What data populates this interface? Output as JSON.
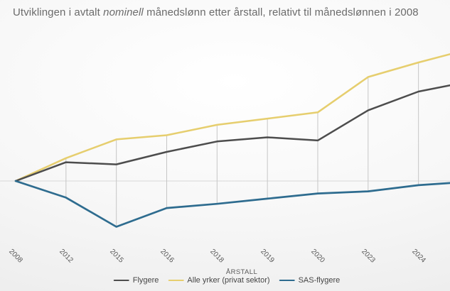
{
  "title": {
    "prefix": "Utviklingen i avtalt ",
    "italic": "nominell",
    "suffix": " månedslønn etter årstall, relativt til månedslønnen i 2008"
  },
  "x_axis": {
    "title": "ÅRSTALL",
    "tick_labels": [
      "2008",
      "2012",
      "2015",
      "2016",
      "2018",
      "2019",
      "2020",
      "2023",
      "2024"
    ]
  },
  "legend": [
    {
      "label": "Flygere",
      "color": "#4d4d4d"
    },
    {
      "label": "Alle yrker (privat sektor)",
      "color": "#e6ce6e"
    },
    {
      "label": "SAS-flygere",
      "color": "#2e6c8f"
    }
  ],
  "colors": {
    "title_text": "#6b6b6b",
    "tick_text": "#595959",
    "legend_text": "#454545",
    "baseline_gridline": "#d8d8d8",
    "high_low_line": "#c6c6c6"
  },
  "chart_data": {
    "type": "line",
    "title": "Utviklingen i avtalt nominell månedslønn etter årstall, relativt til månedslønnen i 2008",
    "xlabel": "ÅRSTALL",
    "ylabel": "",
    "y_axis_visible": false,
    "y_unit": "index, 2008 = 100 (estimated; no y-axis labels visible)",
    "baseline_value": 100,
    "grid": "single horizontal baseline plus vertical high-low lines per year",
    "legend_position": "bottom",
    "right_edge_clipped": true,
    "categories": [
      "2008",
      "2012",
      "2015",
      "2016",
      "2018",
      "2019",
      "2020",
      "2023",
      "2024"
    ],
    "series": [
      {
        "name": "Flygere",
        "color": "#4d4d4d",
        "values": [
          100,
          109,
          108,
          114,
          119,
          121,
          119.5,
          134,
          143
        ],
        "value_at_right_crop": 146
      },
      {
        "name": "Alle yrker (privat sektor)",
        "color": "#e6ce6e",
        "values": [
          100,
          111,
          120,
          122,
          127,
          130,
          133,
          150,
          157
        ],
        "value_at_right_crop": 161
      },
      {
        "name": "SAS-flygere",
        "color": "#2e6c8f",
        "values": [
          100,
          92,
          78,
          87,
          89,
          91.5,
          94,
          95,
          98
        ],
        "value_at_right_crop": 99
      }
    ]
  }
}
